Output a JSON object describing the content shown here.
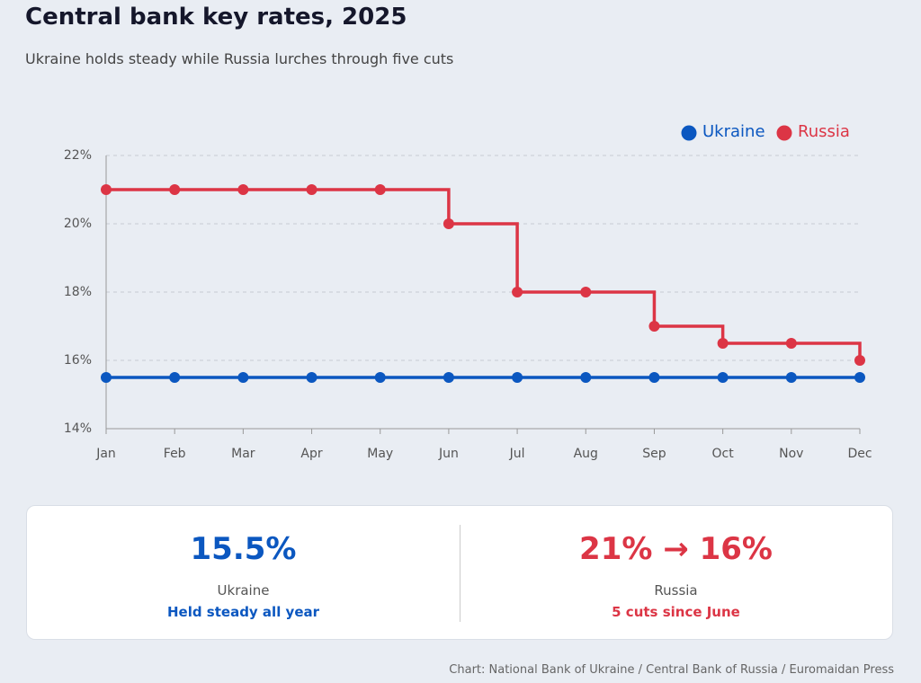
{
  "title": "Central bank key rates, 2025",
  "subtitle": "Ukraine holds steady while Russia lurches through five cuts",
  "chart_data": {
    "type": "line",
    "step": "after",
    "categories": [
      "Jan",
      "Feb",
      "Mar",
      "Apr",
      "May",
      "Jun",
      "Jul",
      "Aug",
      "Sep",
      "Oct",
      "Nov",
      "Dec"
    ],
    "series": [
      {
        "name": "Ukraine",
        "color": "#0b57c0",
        "values": [
          15.5,
          15.5,
          15.5,
          15.5,
          15.5,
          15.5,
          15.5,
          15.5,
          15.5,
          15.5,
          15.5,
          15.5
        ]
      },
      {
        "name": "Russia",
        "color": "#dc3545",
        "values": [
          21,
          21,
          21,
          21,
          21,
          20,
          18,
          18,
          17,
          16.5,
          16.5,
          16
        ]
      }
    ],
    "ylim": [
      14,
      22
    ],
    "yticks": [
      {
        "value": 14,
        "label": "14%"
      },
      {
        "value": 16,
        "label": "16%"
      },
      {
        "value": 18,
        "label": "18%"
      },
      {
        "value": 20,
        "label": "20%"
      },
      {
        "value": 22,
        "label": "22%"
      }
    ],
    "grid": true,
    "legend": "top-right"
  },
  "cards": [
    {
      "value": "15.5%",
      "name": "Ukraine",
      "note": "Held steady all year",
      "color": "#0b57c0"
    },
    {
      "value": "21% → 16%",
      "name": "Russia",
      "note": "5 cuts since June",
      "color": "#dc3545"
    }
  ],
  "source": "Chart: National Bank of Ukraine / Central Bank of Russia / Euromaidan Press"
}
